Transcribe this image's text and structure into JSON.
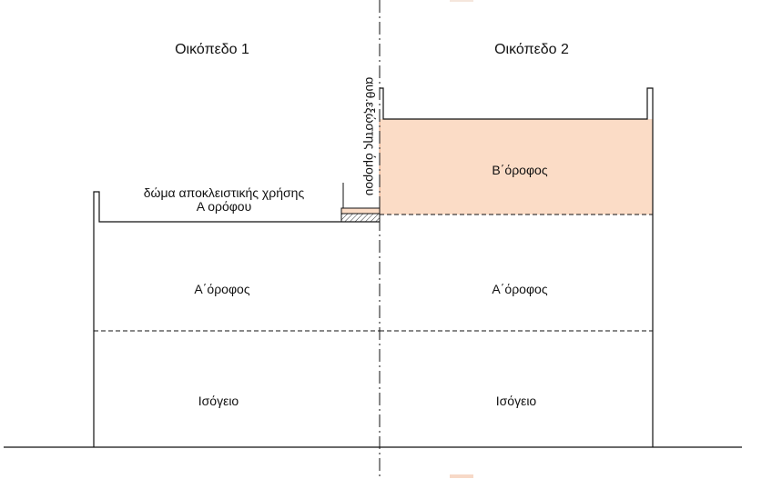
{
  "plots": {
    "left_title": "Οικόπεδο 1",
    "right_title": "Οικόπεδο 2"
  },
  "left_building": {
    "roof_label_line1": "δώμα αποκλειστικής χρήσης",
    "roof_label_line2": "Α ορόφου",
    "first_floor": "Α΄όροφος",
    "ground_floor": "Ισόγειο"
  },
  "right_building": {
    "second_floor": "Β΄όροφος",
    "first_floor": "Α΄όροφος",
    "ground_floor": "Ισόγειο"
  },
  "party_wall_label": "αυθ.εξώστης όμορου",
  "colors": {
    "second_floor_fill": "#fbdcc6",
    "second_floor_stroke": "#e3a37f",
    "line": "#111111"
  }
}
